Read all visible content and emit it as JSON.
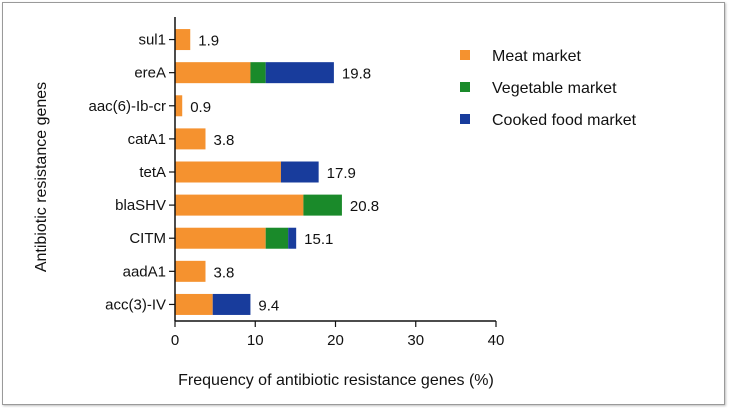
{
  "chart_data": {
    "type": "bar",
    "orientation": "horizontal",
    "stacked": true,
    "categories": [
      "sul1",
      "ereA",
      "aac(6)-Ib-cr",
      "catA1",
      "tetA",
      "blaSHV",
      "CITM",
      "aadA1",
      "acc(3)-IV"
    ],
    "series": [
      {
        "name": "Meat market",
        "color": "#f5922f",
        "values": [
          1.9,
          9.4,
          0.9,
          3.8,
          13.2,
          16.0,
          11.3,
          3.8,
          4.7
        ]
      },
      {
        "name": "Vegetable market",
        "color": "#1a8a2a",
        "values": [
          0,
          1.9,
          0,
          0,
          0,
          4.8,
          2.8,
          0,
          0
        ]
      },
      {
        "name": "Cooked food market",
        "color": "#183c9c",
        "values": [
          0,
          8.5,
          0,
          0,
          4.7,
          0,
          1.0,
          0,
          4.7
        ]
      }
    ],
    "totals": [
      "1.9",
      "19.8",
      "0.9",
      "3.8",
      "17.9",
      "20.8",
      "15.1",
      "3.8",
      "9.4"
    ],
    "xlabel": "Frequency of antibiotic resistance genes (%)",
    "ylabel": "Antibiotic resistance genes",
    "xlim": [
      0,
      40
    ],
    "xticks": [
      0,
      10,
      20,
      30,
      40
    ],
    "grid": false,
    "legend_position": "top-right"
  }
}
